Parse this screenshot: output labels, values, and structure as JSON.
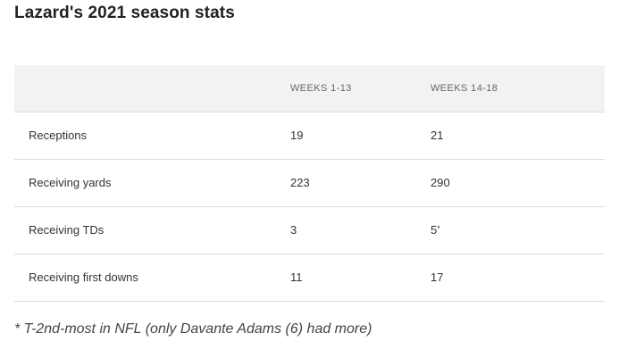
{
  "title": "Lazard's 2021 season stats",
  "table": {
    "headers": [
      "",
      "WEEKS 1-13",
      "WEEKS 14-18"
    ],
    "rows": [
      {
        "stat": "Receptions",
        "weeks_1_13": "19",
        "weeks_14_18": "21"
      },
      {
        "stat": "Receiving yards",
        "weeks_1_13": "223",
        "weeks_14_18": "290"
      },
      {
        "stat": "Receiving TDs",
        "weeks_1_13": "3",
        "weeks_14_18": "5",
        "weeks_14_18_mark": "*"
      },
      {
        "stat": "Receiving first downs",
        "weeks_1_13": "11",
        "weeks_14_18": "17"
      }
    ]
  },
  "footnote": "* T-2nd-most in NFL (only Davante Adams (6) had more)"
}
